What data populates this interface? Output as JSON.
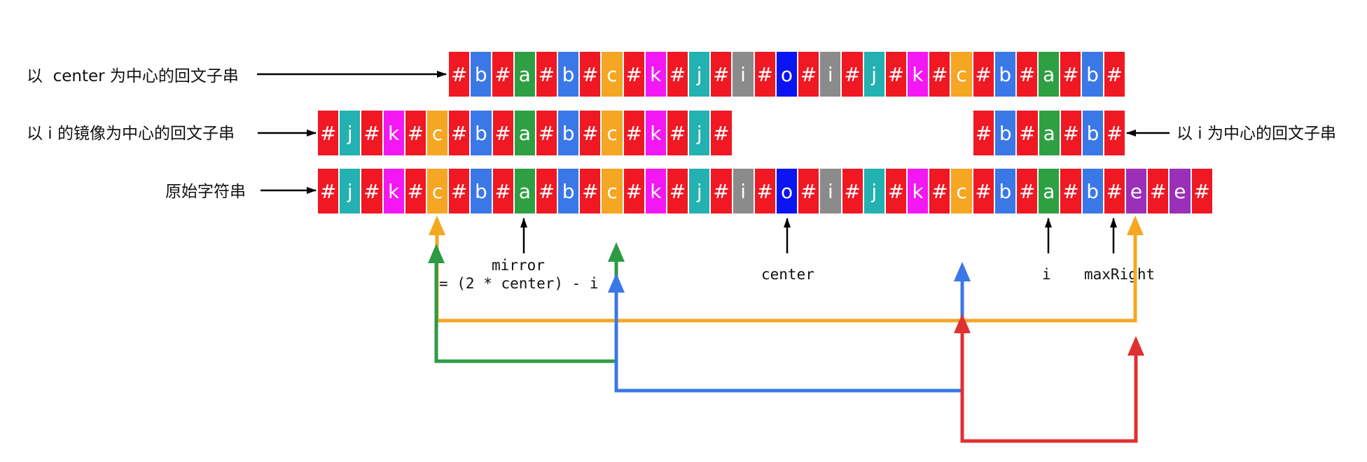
{
  "colors": {
    "#": "#ef1823",
    "a": "#2ea043",
    "b": "#3b78e7",
    "c": "#f5a623",
    "k": "#f318f3",
    "j": "#23b1b1",
    "i": "#8b8b8b",
    "o": "#0a14f0",
    "e": "#9b2fb7",
    "arrow_orange": "#f5a623",
    "arrow_green": "#2e9a43",
    "arrow_blue": "#3b78e7",
    "arrow_red": "#e03030",
    "arrow_black": "#000000"
  },
  "rows": {
    "center_palindrome": {
      "label": "以  center 为中心的回文子串",
      "chars": [
        "#",
        "b",
        "#",
        "a",
        "#",
        "b",
        "#",
        "c",
        "#",
        "k",
        "#",
        "j",
        "#",
        "i",
        "#",
        "o",
        "#",
        "i",
        "#",
        "j",
        "#",
        "k",
        "#",
        "c",
        "#",
        "b",
        "#",
        "a",
        "#",
        "b",
        "#"
      ]
    },
    "mirror_palindrome": {
      "label": "以 i 的镜像为中心的回文子串",
      "chars": [
        "#",
        "j",
        "#",
        "k",
        "#",
        "c",
        "#",
        "b",
        "#",
        "a",
        "#",
        "b",
        "#",
        "c",
        "#",
        "k",
        "#",
        "j",
        "#"
      ]
    },
    "i_palindrome": {
      "label": "以 i 为中心的回文子串",
      "chars": [
        "#",
        "b",
        "#",
        "a",
        "#",
        "b",
        "#"
      ]
    },
    "original": {
      "label": "原始字符串",
      "chars": [
        "#",
        "j",
        "#",
        "k",
        "#",
        "c",
        "#",
        "b",
        "#",
        "a",
        "#",
        "b",
        "#",
        "c",
        "#",
        "k",
        "#",
        "j",
        "#",
        "i",
        "#",
        "o",
        "#",
        "i",
        "#",
        "j",
        "#",
        "k",
        "#",
        "c",
        "#",
        "b",
        "#",
        "a",
        "#",
        "b",
        "#",
        "e",
        "#",
        "e",
        "#"
      ]
    }
  },
  "pointers": {
    "mirror_line1": "mirror",
    "mirror_line2": "= (2 * center) - i",
    "center": "center",
    "i": "i",
    "max_right": "maxRight"
  }
}
